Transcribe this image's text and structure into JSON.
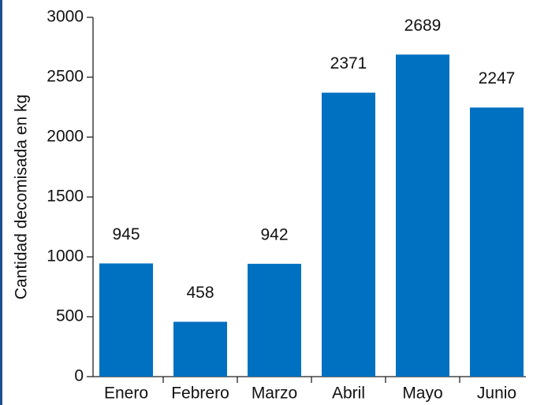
{
  "chart_data": {
    "type": "bar",
    "y_label": "Cantidad decomisada en kg",
    "categories": [
      "Enero",
      "Febrero",
      "Marzo",
      "Abril",
      "Mayo",
      "Junio"
    ],
    "values": [
      945,
      458,
      942,
      2371,
      2689,
      2247
    ],
    "color": "#0070c0",
    "ylim": [
      0,
      3000
    ],
    "yticks": [
      0,
      500,
      1000,
      1500,
      2000,
      2500,
      3000
    ]
  }
}
